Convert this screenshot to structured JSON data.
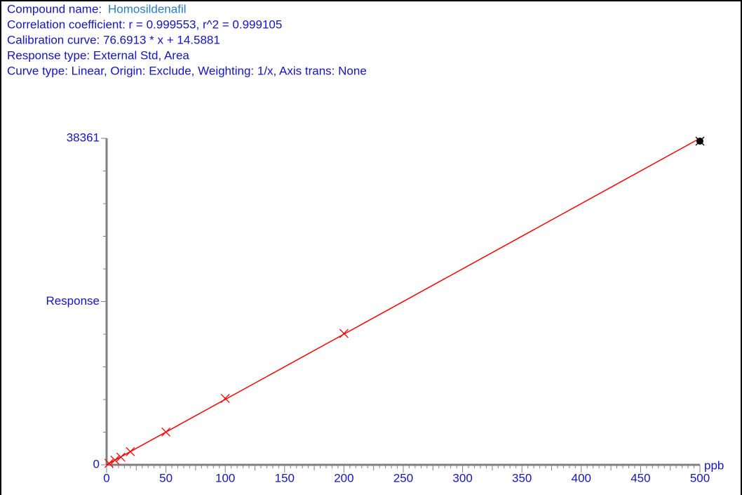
{
  "chart_data": {
    "type": "scatter",
    "header": "Compound name:",
    "compound": "Homosildenafil",
    "info_lines": [
      "Correlation coefficient: r = 0.999553, r^2 = 0.999105",
      "Calibration curve: 76.6913 * x + 14.5881",
      "Response type: External Std, Area",
      "Curve type: Linear, Origin: Exclude, Weighting: 1/x, Axis trans: None"
    ],
    "xlabel": "ppb",
    "ylabel": "Response",
    "x": [
      2,
      7,
      12,
      20,
      50,
      100,
      200,
      500
    ],
    "series": [
      {
        "name": "Standards",
        "color": "#ff0000",
        "values": [
          170,
          550,
          900,
          1550,
          3850,
          7800,
          15430,
          38030
        ],
        "marker_colors": [
          "#ff0000",
          "#ff0000",
          "#ff0000",
          "#ff0000",
          "#ff0000",
          "#ff0000",
          "#ff0000",
          "#000000"
        ]
      }
    ],
    "fit": {
      "x": [
        0,
        500
      ],
      "values": [
        15,
        38360
      ],
      "color": "#ff0000"
    },
    "xlim": [
      0,
      500
    ],
    "xticks": [
      0,
      50,
      100,
      150,
      200,
      250,
      300,
      350,
      400,
      450,
      500
    ],
    "ylim": [
      0,
      38361
    ],
    "yticks": [
      0,
      38361
    ]
  }
}
